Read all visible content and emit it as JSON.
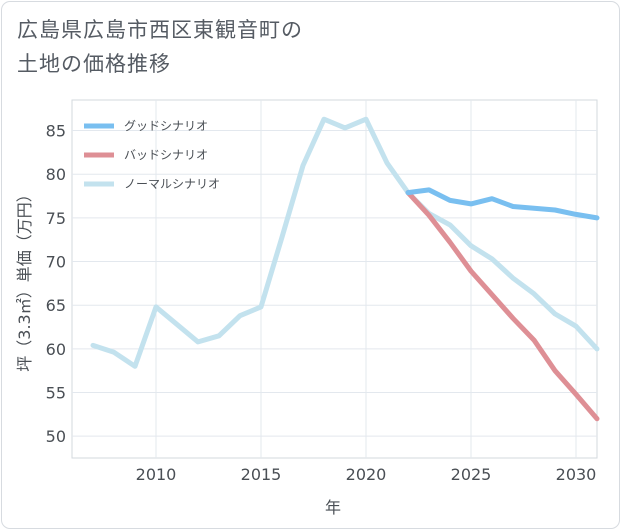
{
  "page": {
    "title_line1": "広島県広島市西区東観音町の",
    "title_line2": "土地の価格推移"
  },
  "chart_data": {
    "type": "line",
    "title": "広島県広島市西区東観音町の土地の価格推移",
    "xlabel": "年",
    "ylabel": "坪（3.3㎡）単価（万円）",
    "xlim": [
      2006,
      2031
    ],
    "ylim": [
      47.5,
      88.5
    ],
    "grid": true,
    "legend_position": "top-left",
    "x_ticks": [
      2010,
      2015,
      2020,
      2025,
      2030
    ],
    "y_ticks": [
      50,
      55,
      60,
      65,
      70,
      75,
      80,
      85
    ],
    "series": [
      {
        "name": "グッドシナリオ",
        "color": "#79bff0",
        "x": [
          2022,
          2023,
          2024,
          2025,
          2026,
          2027,
          2028,
          2029,
          2030,
          2031
        ],
        "values": [
          77.9,
          78.2,
          77.0,
          76.6,
          77.2,
          76.3,
          76.1,
          75.9,
          75.4,
          75.0
        ]
      },
      {
        "name": "バッドシナリオ",
        "color": "#de8f95",
        "x": [
          2022,
          2023,
          2024,
          2025,
          2026,
          2027,
          2028,
          2029,
          2030,
          2031
        ],
        "values": [
          77.9,
          75.3,
          72.2,
          68.9,
          66.2,
          63.5,
          61.0,
          57.5,
          54.8,
          52.0
        ]
      },
      {
        "name": "ノーマルシナリオ",
        "color": "#c3e2ee",
        "x": [
          2007,
          2008,
          2009,
          2010,
          2011,
          2012,
          2013,
          2014,
          2015,
          2016,
          2017,
          2018,
          2019,
          2020,
          2021,
          2022,
          2023,
          2024,
          2025,
          2026,
          2027,
          2028,
          2029,
          2030,
          2031
        ],
        "values": [
          60.4,
          59.6,
          58.0,
          64.8,
          62.8,
          60.8,
          61.5,
          63.8,
          64.8,
          72.8,
          81.0,
          86.3,
          85.3,
          86.3,
          81.3,
          77.9,
          75.5,
          74.2,
          71.8,
          70.3,
          68.1,
          66.3,
          64.0,
          62.6,
          60.0
        ]
      }
    ]
  }
}
